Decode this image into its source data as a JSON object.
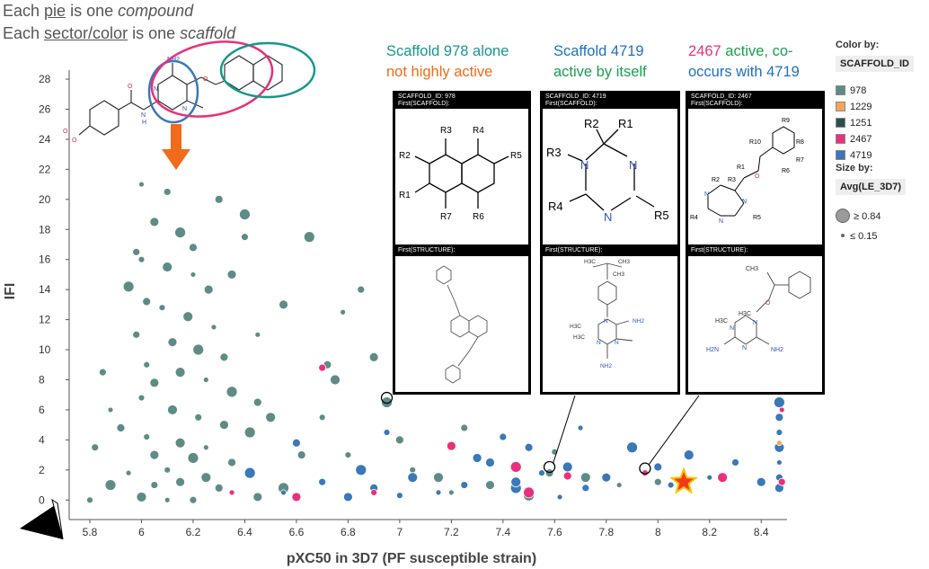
{
  "headline": {
    "line1": {
      "a": "Each ",
      "b": "pie",
      "c": " is one ",
      "d": "compound"
    },
    "line2": {
      "a": "Each ",
      "b": "sector/color",
      "c": " is one ",
      "d": "scaffold"
    }
  },
  "callouts": {
    "c1": {
      "line1": "Scaffold 978 alone",
      "line2": "not highly active"
    },
    "c2": {
      "line1": "Scaffold 4719",
      "line2": "active by itself"
    },
    "c3": {
      "line1a": "2467",
      "line1b": " active, co-",
      "line2": "occurs with 4719"
    }
  },
  "panels": [
    {
      "header1": "SCAFFOLD_ID: 978",
      "header2": "First(SCAFFOLD):",
      "struct_header": "First(STRUCTURE):",
      "rgroups": [
        "R3",
        "R4",
        "R2",
        "R5",
        "R1",
        "R7",
        "R6"
      ]
    },
    {
      "header1": "SCAFFOLD_ID: 4719",
      "header2": "First(SCAFFOLD):",
      "struct_header": "First(STRUCTURE):",
      "rgroups": [
        "R2",
        "R1",
        "R3",
        "N",
        "N",
        "R4",
        "N",
        "R5"
      ],
      "struct_labels": [
        "H3C",
        "CH3",
        "CH3",
        "N",
        "N",
        "N",
        "NH2",
        "NH2",
        "H3C",
        "H3C"
      ]
    },
    {
      "header1": "SCAFFOLD_ID: 2467",
      "header2": "First(SCAFFOLD):",
      "struct_header": "First(STRUCTURE):",
      "rgroups": [
        "R9",
        "R10",
        "R8",
        "R1",
        "R2",
        "R3",
        "R7",
        "R6",
        "O",
        "N",
        "N",
        "N",
        "R4",
        "R5"
      ],
      "struct_labels": [
        "H3C",
        "H3C",
        "CH3",
        "O",
        "N",
        "N",
        "N",
        "H2N",
        "NH2"
      ]
    }
  ],
  "legend": {
    "color_title": "Color by:",
    "color_field": "SCAFFOLD_ID",
    "items": [
      {
        "label": "978",
        "color": "#5f8b86"
      },
      {
        "label": "1229",
        "color": "#f2a65a"
      },
      {
        "label": "1251",
        "color": "#2f4f4c"
      },
      {
        "label": "2467",
        "color": "#e8307c"
      },
      {
        "label": "4719",
        "color": "#3a78b8"
      }
    ],
    "size_title": "Size by:",
    "size_field": "Avg(LE_3D7)",
    "size_max": "≥ 0.84",
    "size_min": "≤ 0.15"
  },
  "molecule_labels": [
    "NH2",
    "N",
    "N",
    "O",
    "O",
    "N",
    "H",
    "O",
    "O"
  ],
  "chart_data": {
    "type": "scatter",
    "title": "",
    "xlabel": "pXC50 in 3D7 (PF susceptible strain)",
    "ylabel": "IFI",
    "xlim": [
      5.72,
      8.5
    ],
    "ylim": [
      -1.3,
      28.6
    ],
    "xticks": [
      "5.8",
      "6",
      "6.2",
      "6.4",
      "6.6",
      "6.8",
      "7",
      "7.2",
      "7.4",
      "7.6",
      "7.8",
      "8",
      "8.2",
      "8.4"
    ],
    "yticks": [
      "0",
      "2",
      "4",
      "6",
      "8",
      "10",
      "12",
      "14",
      "16",
      "18",
      "20",
      "22",
      "24",
      "26",
      "28"
    ],
    "grid": false,
    "legend_position": "right",
    "series": [
      {
        "scaffold": "978",
        "color": "#5f8b86",
        "points": [
          [
            6.0,
            21.0
          ],
          [
            6.1,
            20.5
          ],
          [
            6.05,
            18.5
          ],
          [
            6.15,
            17.8
          ],
          [
            6.2,
            16.8
          ],
          [
            6.0,
            16.0
          ],
          [
            6.1,
            15.5
          ],
          [
            6.2,
            15.0
          ],
          [
            6.4,
            17.5
          ],
          [
            6.35,
            15.0
          ],
          [
            5.95,
            14.2
          ],
          [
            6.02,
            13.2
          ],
          [
            6.08,
            12.8
          ],
          [
            6.18,
            12.2
          ],
          [
            6.28,
            11.5
          ],
          [
            5.98,
            11.0
          ],
          [
            6.12,
            10.5
          ],
          [
            6.22,
            10.0
          ],
          [
            6.32,
            9.5
          ],
          [
            6.02,
            9.0
          ],
          [
            6.15,
            8.5
          ],
          [
            6.25,
            8.0
          ],
          [
            5.85,
            8.5
          ],
          [
            6.05,
            7.8
          ],
          [
            6.35,
            7.2
          ],
          [
            6.45,
            6.5
          ],
          [
            6.0,
            6.8
          ],
          [
            6.12,
            6.0
          ],
          [
            5.88,
            6.0
          ],
          [
            6.22,
            5.5
          ],
          [
            6.32,
            5.0
          ],
          [
            6.42,
            4.5
          ],
          [
            5.92,
            4.8
          ],
          [
            6.02,
            4.2
          ],
          [
            6.15,
            3.8
          ],
          [
            6.25,
            3.5
          ],
          [
            5.82,
            3.5
          ],
          [
            6.05,
            3.0
          ],
          [
            6.2,
            2.8
          ],
          [
            6.35,
            2.5
          ],
          [
            6.1,
            2.0
          ],
          [
            6.25,
            1.5
          ],
          [
            5.95,
            1.8
          ],
          [
            6.05,
            1.0
          ],
          [
            6.15,
            1.2
          ],
          [
            5.88,
            1.0
          ],
          [
            6.3,
            0.8
          ],
          [
            5.8,
            0.0
          ],
          [
            6.0,
            0.2
          ],
          [
            6.1,
            0.0
          ],
          [
            6.2,
            0.0
          ],
          [
            6.45,
            0.2
          ],
          [
            6.55,
            0.8
          ],
          [
            6.62,
            3.0
          ],
          [
            6.7,
            5.5
          ],
          [
            6.75,
            8.0
          ],
          [
            6.78,
            12.5
          ],
          [
            6.85,
            14.0
          ],
          [
            6.9,
            9.5
          ],
          [
            6.95,
            6.5
          ],
          [
            7.0,
            4.0
          ],
          [
            7.05,
            2.0
          ],
          [
            7.15,
            1.5
          ],
          [
            7.2,
            0.5
          ],
          [
            7.25,
            4.8
          ],
          [
            7.35,
            1.0
          ],
          [
            7.5,
            0.3
          ],
          [
            7.58,
            1.8
          ],
          [
            7.6,
            3.2
          ],
          [
            7.72,
            1.5
          ],
          [
            7.85,
            1.0
          ],
          [
            8.0,
            1.2
          ],
          [
            6.55,
            13.0
          ],
          [
            6.65,
            17.5
          ],
          [
            6.72,
            9.0
          ],
          [
            6.8,
            3.0
          ],
          [
            6.5,
            5.5
          ],
          [
            6.45,
            11.0
          ],
          [
            5.98,
            16.5
          ],
          [
            6.26,
            14.0
          ],
          [
            6.4,
            19.0
          ],
          [
            6.3,
            20.0
          ]
        ]
      },
      {
        "scaffold": "4719",
        "color": "#3a78b8",
        "points": [
          [
            6.55,
            0.5
          ],
          [
            6.7,
            1.2
          ],
          [
            6.8,
            0.2
          ],
          [
            6.85,
            2.0
          ],
          [
            6.9,
            0.8
          ],
          [
            7.0,
            0.3
          ],
          [
            7.05,
            1.5
          ],
          [
            7.15,
            0.5
          ],
          [
            7.25,
            1.0
          ],
          [
            7.35,
            2.5
          ],
          [
            7.45,
            0.8
          ],
          [
            7.5,
            3.5
          ],
          [
            7.55,
            1.8
          ],
          [
            7.65,
            2.2
          ],
          [
            7.7,
            4.8
          ],
          [
            7.72,
            0.8
          ],
          [
            7.8,
            1.5
          ],
          [
            7.9,
            3.5
          ],
          [
            8.0,
            2.2
          ],
          [
            8.05,
            1.0
          ],
          [
            8.12,
            3.0
          ],
          [
            8.2,
            1.5
          ],
          [
            8.3,
            2.5
          ],
          [
            8.4,
            1.2
          ],
          [
            8.47,
            6.5
          ],
          [
            8.47,
            5.5
          ],
          [
            8.47,
            4.5
          ],
          [
            8.47,
            3.5
          ],
          [
            8.47,
            2.5
          ],
          [
            8.47,
            1.5
          ],
          [
            8.47,
            0.8
          ],
          [
            6.42,
            1.8
          ],
          [
            6.6,
            3.8
          ],
          [
            6.95,
            4.5
          ],
          [
            7.45,
            1.2
          ],
          [
            7.62,
            0.2
          ],
          [
            7.4,
            4.2
          ],
          [
            7.3,
            2.8
          ]
        ]
      },
      {
        "scaffold": "2467",
        "color": "#e8307c",
        "points": [
          [
            6.35,
            0.5
          ],
          [
            6.7,
            8.8
          ],
          [
            7.2,
            3.6
          ],
          [
            7.45,
            2.2
          ],
          [
            7.65,
            1.6
          ],
          [
            7.95,
            1.8
          ],
          [
            8.25,
            1.5
          ],
          [
            8.48,
            6.0
          ],
          [
            8.48,
            1.2
          ],
          [
            6.6,
            0.2
          ],
          [
            7.5,
            0.5
          ],
          [
            8.1,
            1.0
          ],
          [
            6.9,
            0.5
          ]
        ]
      },
      {
        "scaffold": "1229",
        "color": "#f2a65a",
        "points": [
          [
            8.47,
            3.8
          ]
        ]
      }
    ],
    "annotations": {
      "highlight_ring_978": [
        6.95,
        6.8
      ],
      "highlight_ring_4719": [
        7.58,
        2.2
      ],
      "highlight_ring_2467": [
        7.95,
        2.1
      ],
      "star": [
        8.1,
        1.2
      ]
    }
  }
}
